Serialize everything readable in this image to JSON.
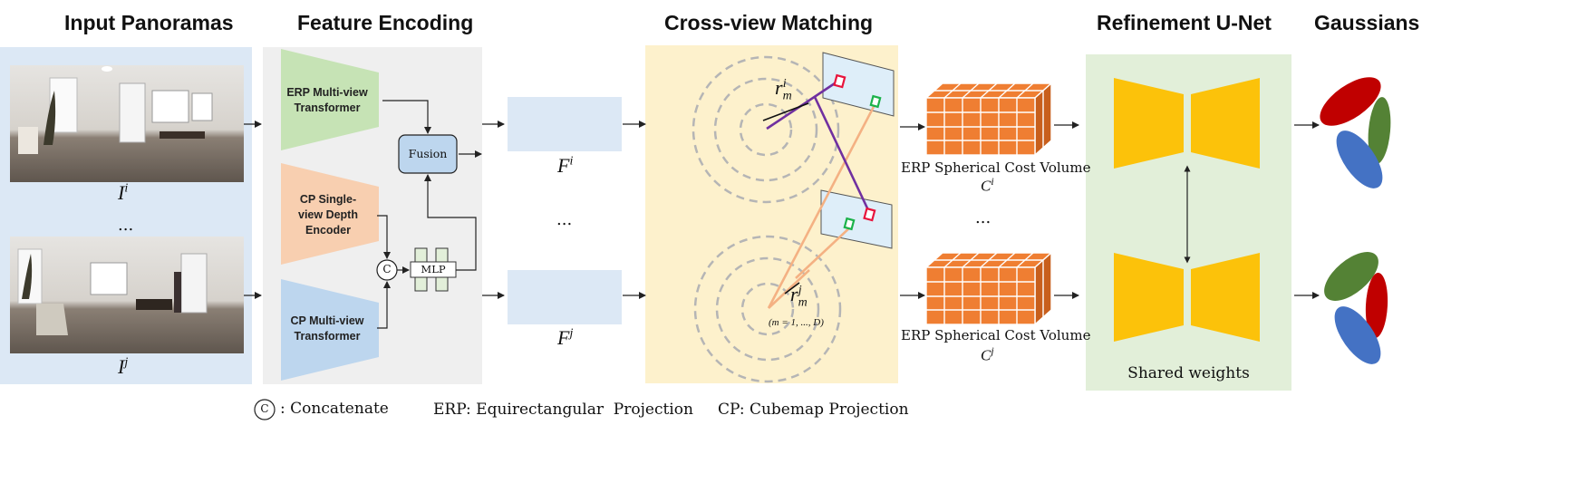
{
  "sections": {
    "input": "Input Panoramas",
    "encoding": "Feature Encoding",
    "matching": "Cross-view Matching",
    "refinement": "Refinement U-Net",
    "gaussians": "Gaussians"
  },
  "panorama_labels": {
    "top": "I",
    "top_sup": "i",
    "bottom": "I",
    "bottom_sup": "j",
    "ellipsis": "..."
  },
  "encoders": {
    "erp": "ERP Multi-view Transformer",
    "cp_single": "CP Single-view Depth Encoder",
    "cp_multi": "CP Multi-view Transformer",
    "fusion": "Fusion",
    "mlp": "MLP",
    "concat": "C"
  },
  "features": {
    "top": "F",
    "top_sup": "i",
    "bottom": "F",
    "bottom_sup": "j",
    "ellipsis": "..."
  },
  "matching": {
    "r_top": "r",
    "r_top_sub": "m",
    "r_top_sup": "i",
    "r_bottom": "r",
    "r_bottom_sub": "m",
    "r_bottom_sup": "j",
    "range": "(m = 1, ..., D)"
  },
  "cost_volumes": {
    "top_label": "ERP Spherical Cost Volume",
    "top_var": "C",
    "top_sup": "i",
    "bottom_label": "ERP Spherical Cost Volume",
    "bottom_var": "C",
    "bottom_sup": "j",
    "ellipsis": "..."
  },
  "unet": {
    "shared": "Shared weights"
  },
  "legend": {
    "concat_symbol": "C",
    "concat": ": Concatenate",
    "erp": "ERP: Equirectangular  Projection",
    "cp": "CP: Cubemap Projection"
  },
  "colors": {
    "input_bg": "#dce8f5",
    "encoding_bg": "#efefef",
    "matching_bg": "#fdf1cc",
    "unet_bg": "#e2efd9",
    "erp_encoder": "#c6e3b5",
    "cp_single_encoder": "#f8cfb0",
    "cp_multi_encoder": "#bdd6ee",
    "cost_volume": "#ef7e32",
    "unet": "#fcc20a",
    "gaussian_red": "#c00000",
    "gaussian_green": "#548235",
    "gaussian_blue": "#4472c4",
    "ray_purple": "#7030a0",
    "ray_orange": "#f4b183"
  }
}
